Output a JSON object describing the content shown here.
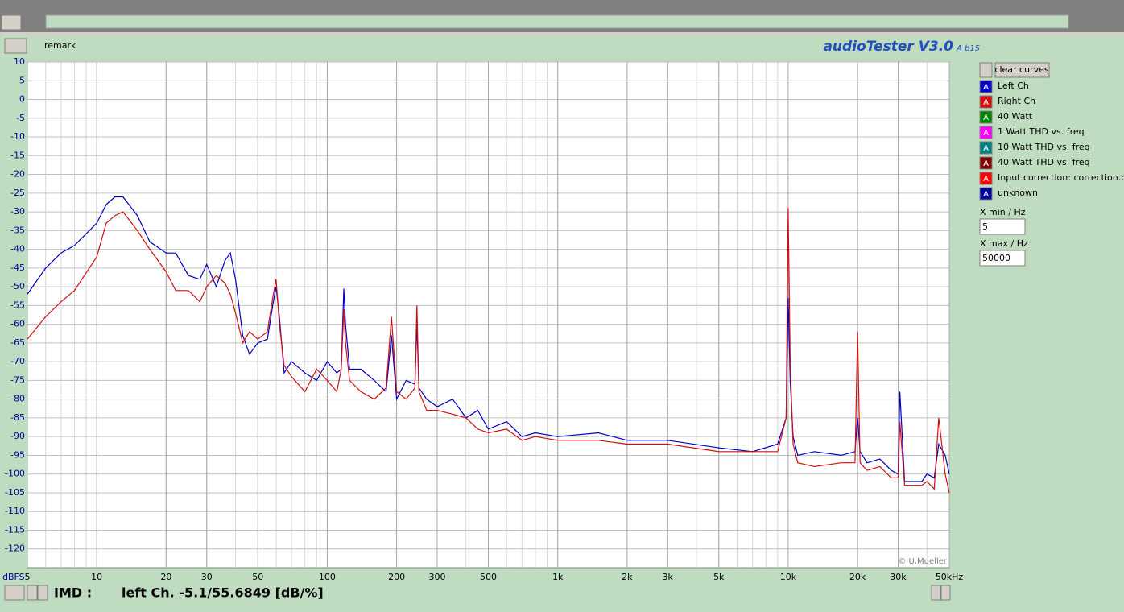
{
  "header": {
    "remark": "remark",
    "title": "audioTester V3.0",
    "version": "A b15"
  },
  "chart_data": {
    "type": "line",
    "log_x": true,
    "grid": true,
    "minor_grid": true,
    "y_unit": "dBFS",
    "copyright": "© U.Mueller",
    "xlim": [
      5,
      50000
    ],
    "ylim": [
      -125,
      10
    ],
    "xticks": [
      5,
      10,
      20,
      30,
      50,
      100,
      200,
      300,
      500,
      {
        "value": 1000,
        "label": "1k"
      },
      {
        "value": 2000,
        "label": "2k"
      },
      {
        "value": 3000,
        "label": "3k"
      },
      {
        "value": 5000,
        "label": "5k"
      },
      {
        "value": 10000,
        "label": "10k"
      },
      {
        "value": 20000,
        "label": "20k"
      },
      {
        "value": 30000,
        "label": "30k"
      },
      {
        "value": 50000,
        "label": "50kHz"
      }
    ],
    "yticks": [
      10,
      5,
      0,
      -5,
      -10,
      -15,
      -20,
      -25,
      -30,
      -35,
      -40,
      -45,
      -50,
      -55,
      -60,
      -65,
      -70,
      -75,
      -80,
      -85,
      -90,
      -95,
      -100,
      -105,
      -110,
      -115,
      -120
    ],
    "x": [
      5,
      6,
      7,
      8,
      10,
      11,
      12,
      13,
      15,
      17,
      20,
      22,
      25,
      28,
      30,
      33,
      36,
      38,
      40,
      43,
      46,
      50,
      55,
      58,
      60,
      62,
      65,
      70,
      80,
      90,
      100,
      110,
      115,
      118,
      120,
      125,
      140,
      160,
      180,
      190,
      200,
      220,
      240,
      245,
      250,
      270,
      300,
      350,
      400,
      450,
      500,
      600,
      700,
      800,
      1000,
      1500,
      2000,
      3000,
      5000,
      7000,
      9000,
      9800,
      10000,
      10200,
      10500,
      11000,
      13000,
      17000,
      19500,
      20000,
      20500,
      22000,
      25000,
      28000,
      30000,
      30500,
      32000,
      38000,
      40000,
      43000,
      45000,
      48000,
      50000
    ],
    "series": [
      {
        "name": "Left Ch",
        "color": "#0000c8",
        "values": [
          -52,
          -45,
          -41,
          -39,
          -33,
          -28,
          -26,
          -26,
          -31,
          -38,
          -41,
          -41,
          -47,
          -48,
          -44,
          -50,
          -43,
          -41,
          -48,
          -63,
          -68,
          -65,
          -64,
          -55,
          -50,
          -58,
          -73,
          -70,
          -73,
          -75,
          -70,
          -73,
          -72,
          -50.5,
          -60,
          -72,
          -72,
          -75,
          -78,
          -63,
          -80,
          -75,
          -76,
          -60,
          -77,
          -80,
          -82,
          -80,
          -85,
          -83,
          -88,
          -86,
          -90,
          -89,
          -90,
          -89,
          -91,
          -91,
          -93,
          -94,
          -92,
          -85,
          -53,
          -75,
          -90,
          -95,
          -94,
          -95,
          -94,
          -85,
          -94,
          -97,
          -96,
          -99,
          -100,
          -78,
          -102,
          -102,
          -100,
          -101,
          -92,
          -95,
          -100
        ]
      },
      {
        "name": "Right Ch",
        "color": "#d01010",
        "values": [
          -64,
          -58,
          -54,
          -51,
          -42,
          -33,
          -31,
          -30,
          -35,
          -40,
          -46,
          -51,
          -51,
          -54,
          -50,
          -47,
          -49,
          -52,
          -57,
          -65,
          -62,
          -64,
          -62,
          -53,
          -48,
          -60,
          -71,
          -74,
          -78,
          -72,
          -75,
          -78,
          -72,
          -56,
          -65,
          -75,
          -78,
          -80,
          -77,
          -58,
          -78,
          -80,
          -77,
          -55,
          -78,
          -83,
          -83,
          -84,
          -85,
          -88,
          -89,
          -88,
          -91,
          -90,
          -91,
          -91,
          -92,
          -92,
          -94,
          -94,
          -94,
          -85,
          -29,
          -70,
          -92,
          -97,
          -98,
          -97,
          -97,
          -62,
          -97,
          -99,
          -98,
          -101,
          -101,
          -86,
          -103,
          -103,
          -102,
          -104,
          -85,
          -100,
          -105
        ]
      }
    ]
  },
  "sidebar": {
    "clear_button": "clear curves",
    "icon_label": "A",
    "other_curves": [
      {
        "name": "40 Watt",
        "color": "#008000"
      },
      {
        "name": "1 Watt THD vs. freq",
        "color": "#ff00ff"
      },
      {
        "name": "10 Watt THD vs. freq",
        "color": "#008080"
      },
      {
        "name": "40 Watt THD vs. freq",
        "color": "#800000"
      },
      {
        "name": "Input correction: correction.cor",
        "color": "#ff0000"
      },
      {
        "name": "unknown",
        "color": "#0000a0"
      }
    ],
    "xmin_label": "X min / Hz",
    "xmin": "5",
    "xmax_label": "X max / Hz",
    "xmax": "50000"
  },
  "footer": {
    "label": "IMD :",
    "text": "left Ch. -5.1/55.6849 [dB/%]"
  }
}
